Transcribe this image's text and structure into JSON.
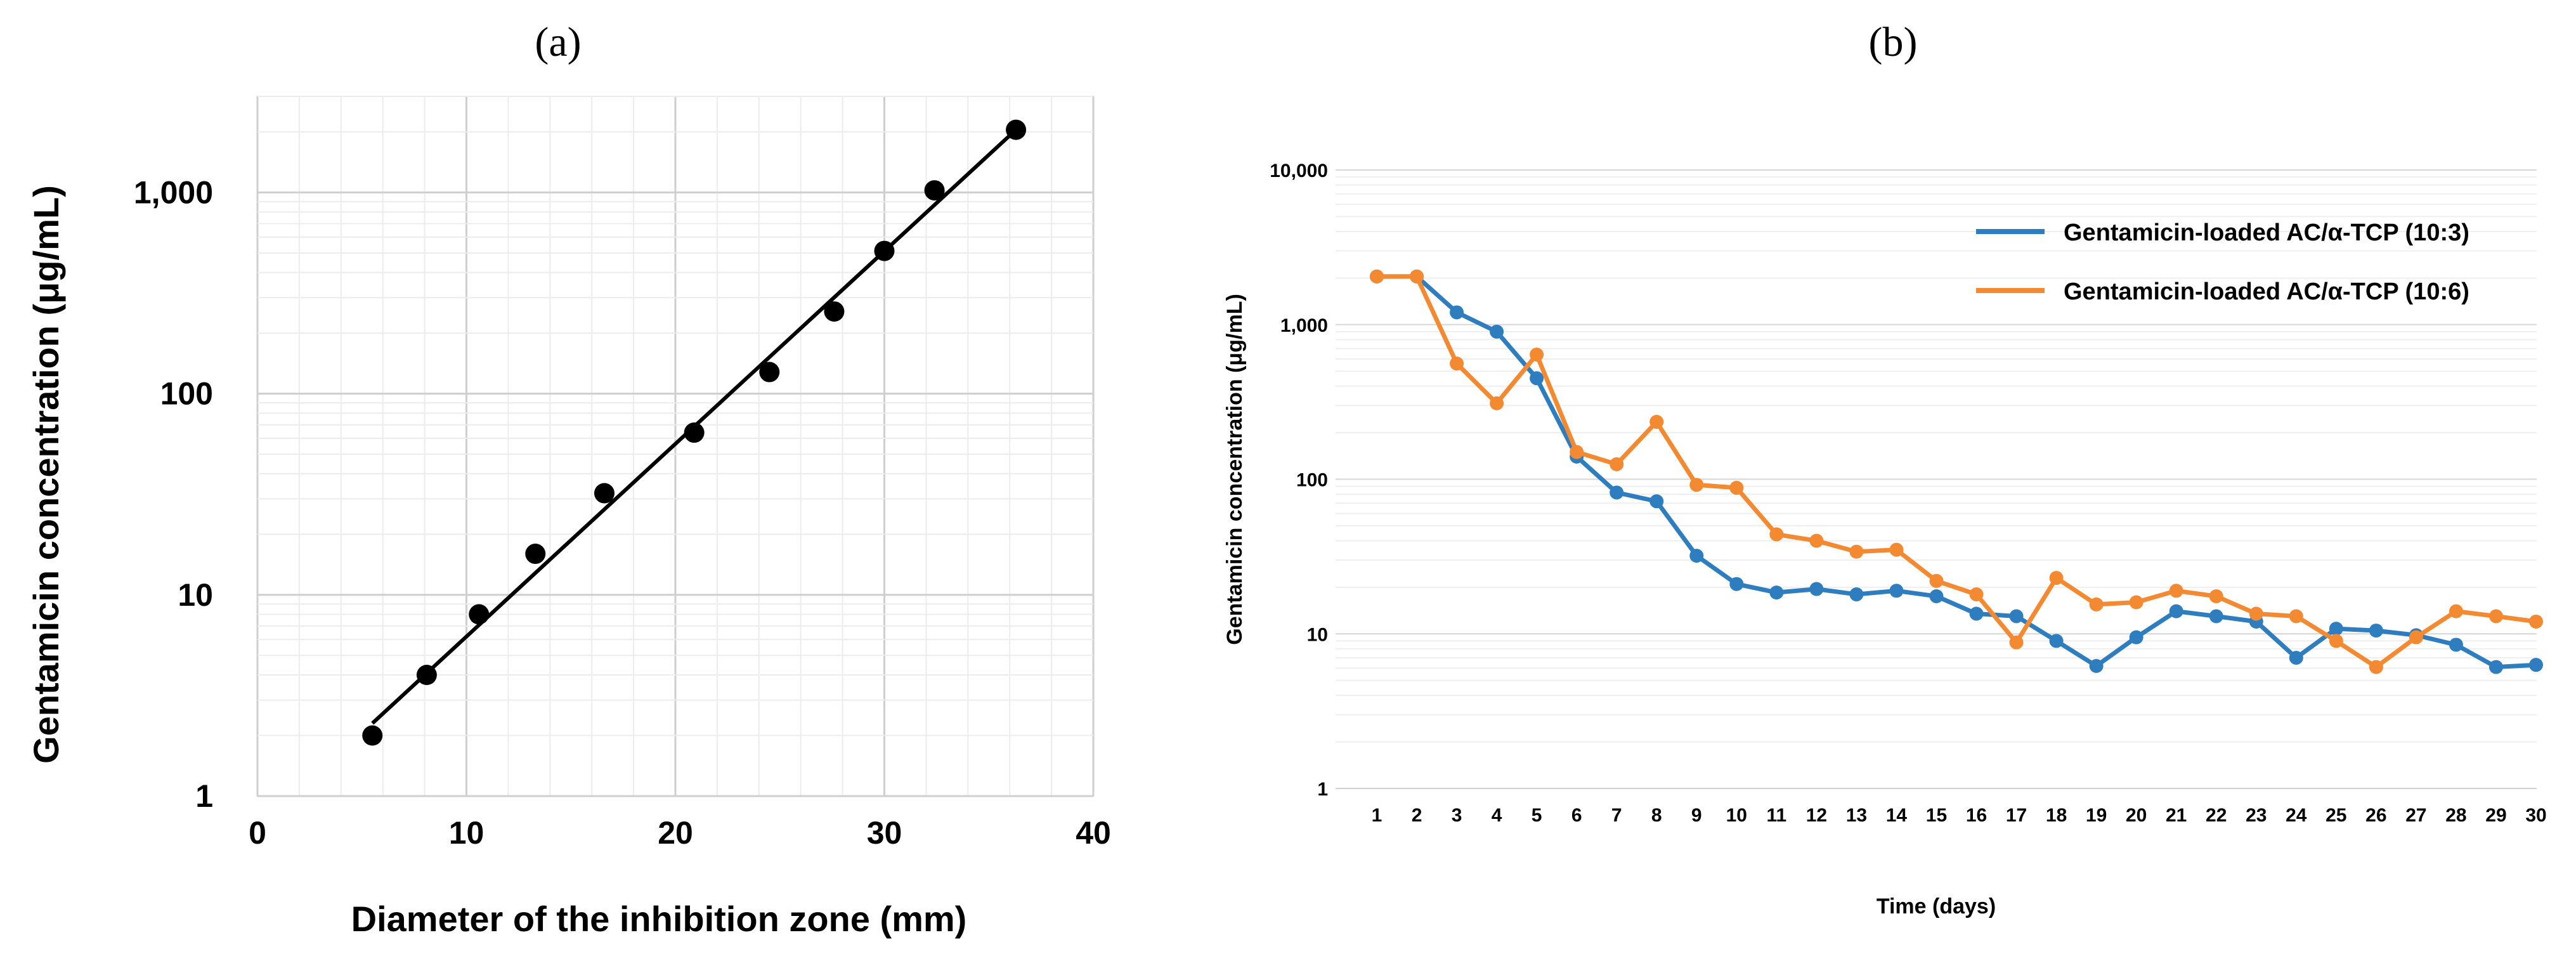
{
  "chart_data": [
    {
      "type": "scatter",
      "panel_label": "(a)",
      "xlabel": "Diameter of the inhibition zone (mm)",
      "ylabel": "Gentamicin concentration (μg/mL)",
      "xlim": [
        0,
        40
      ],
      "ylim": [
        1,
        3000
      ],
      "yscale": "log",
      "x_ticks": [
        0,
        10,
        20,
        30,
        40
      ],
      "y_ticks": [
        1,
        10,
        100,
        1000
      ],
      "y_tick_labels": [
        "1",
        "10",
        "100",
        "1,000"
      ],
      "grid": true,
      "points": [
        {
          "x": 5.5,
          "y": 2
        },
        {
          "x": 8.1,
          "y": 4
        },
        {
          "x": 10.6,
          "y": 8
        },
        {
          "x": 13.3,
          "y": 16
        },
        {
          "x": 16.6,
          "y": 32
        },
        {
          "x": 20.9,
          "y": 64
        },
        {
          "x": 24.5,
          "y": 128
        },
        {
          "x": 27.6,
          "y": 256
        },
        {
          "x": 30.0,
          "y": 512
        },
        {
          "x": 32.4,
          "y": 1024
        },
        {
          "x": 36.3,
          "y": 2048
        }
      ],
      "trendline": {
        "x_start": 5.5,
        "y_start": 2.3,
        "x_end": 36.3,
        "y_end": 2048
      }
    },
    {
      "type": "line",
      "panel_label": "(b)",
      "xlabel": "Time (days)",
      "ylabel": "Gentamicin concentration (μg/mL)",
      "ylim": [
        1,
        10000
      ],
      "yscale": "log",
      "y_ticks": [
        1,
        10,
        100,
        1000,
        10000
      ],
      "y_tick_labels": [
        "1",
        "10",
        "100",
        "1,000",
        "10,000"
      ],
      "legend_position": "top-right",
      "grid": true,
      "categories": [
        "1",
        "2",
        "3",
        "4",
        "5",
        "6",
        "7",
        "8",
        "9",
        "10",
        "11",
        "12",
        "13",
        "14",
        "15",
        "16",
        "17",
        "18",
        "19",
        "20",
        "21",
        "22",
        "23",
        "24",
        "25",
        "26",
        "27",
        "28",
        "29",
        "30"
      ],
      "series": [
        {
          "name": "Gentamicin-loaded AC/α-TCP (10:3)",
          "color": "#2e7ebf",
          "values": [
            2048,
            2048,
            1200,
            900,
            450,
            140,
            82,
            72,
            32,
            21,
            18.5,
            19.5,
            18,
            19,
            17.5,
            13.5,
            13,
            9,
            6.2,
            9.5,
            14,
            13,
            12,
            7,
            10.8,
            10.5,
            9.8,
            8.5,
            6.1,
            6.3
          ]
        },
        {
          "name": "Gentamicin-loaded AC/α-TCP (10:6)",
          "color": "#f38a32",
          "values": [
            2048,
            2048,
            560,
            310,
            640,
            150,
            125,
            235,
            92,
            88,
            44,
            40,
            34,
            35,
            22,
            18,
            8.8,
            23,
            15.5,
            16,
            19,
            17.5,
            13.5,
            13,
            9,
            6.1,
            9.5,
            14,
            13,
            12
          ]
        }
      ]
    }
  ]
}
